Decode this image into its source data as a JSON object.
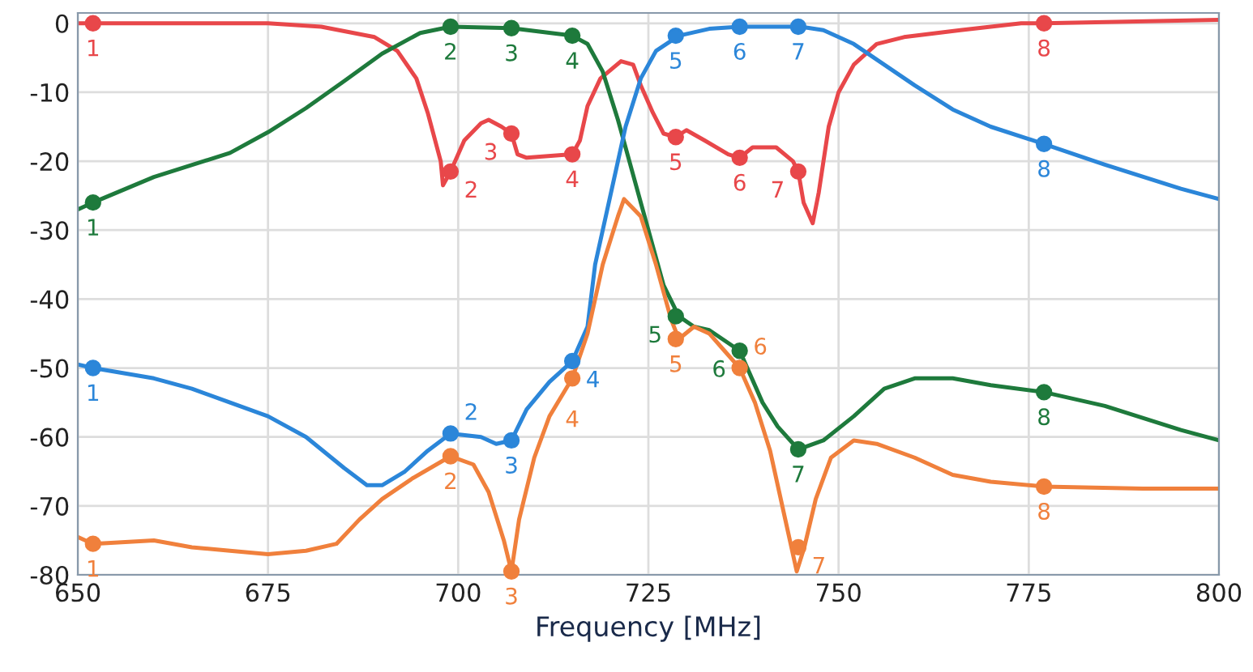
{
  "chart_data": {
    "type": "line",
    "xlabel": "Frequency [MHz]",
    "xlim": [
      650,
      800
    ],
    "xticks": [
      650,
      675,
      700,
      725,
      750,
      775,
      800
    ],
    "ylim": [
      -80,
      1.5
    ],
    "yticks": [
      0,
      -10,
      -20,
      -30,
      -40,
      -50,
      -60,
      -70,
      -80
    ],
    "grid": true,
    "series": [
      {
        "color": "#e8474a",
        "x": [
          650,
          660,
          675,
          682,
          689,
          692,
          694.5,
          696,
          697.7,
          698,
          699,
          700.8,
          703,
          704,
          705.7,
          707,
          707.8,
          709,
          715,
          716,
          717,
          718.7,
          721.4,
          723,
          724,
          725.6,
          727,
          728.6,
          730,
          732.4,
          735.5,
          737,
          738.7,
          741.8,
          744,
          744.7,
          745.4,
          746.6,
          747.4,
          748.7,
          750,
          752,
          755,
          758.6,
          766,
          774,
          777,
          800
        ],
        "values": [
          0,
          0,
          0,
          -0.5,
          -2,
          -4,
          -8,
          -13,
          -20,
          -23.5,
          -21.5,
          -17,
          -14.5,
          -14,
          -15,
          -16,
          -19,
          -19.5,
          -19,
          -17,
          -12,
          -8,
          -5.5,
          -6,
          -9,
          -13,
          -16,
          -16.5,
          -15.5,
          -17,
          -19,
          -19.5,
          -18,
          -18,
          -20,
          -21.5,
          -26,
          -29,
          -24.5,
          -15,
          -10,
          -6,
          -3,
          -2,
          -1,
          0,
          0,
          0.5
        ]
      },
      {
        "color": "#1e7a3c",
        "x": [
          650,
          652,
          660,
          670,
          675,
          680,
          685,
          690,
          695,
          699,
          707,
          715,
          717,
          719,
          721,
          723,
          725,
          727,
          729,
          731,
          733,
          735,
          737,
          740,
          742,
          744.7,
          748,
          752,
          756,
          760,
          765,
          770,
          777,
          785,
          795,
          800
        ],
        "values": [
          -27,
          -26,
          -22.3,
          -18.8,
          -15.8,
          -12.3,
          -8.4,
          -4.4,
          -1.4,
          -0.5,
          -0.7,
          -1.8,
          -3,
          -7,
          -14,
          -22,
          -30,
          -38,
          -42.5,
          -44,
          -44.5,
          -46,
          -47.5,
          -55,
          -58.5,
          -61.8,
          -60.5,
          -57,
          -53,
          -51.5,
          -51.5,
          -52.5,
          -53.5,
          -55.5,
          -59,
          -60.5
        ]
      },
      {
        "color": "#2b86d9",
        "x": [
          650,
          652,
          660,
          665,
          670,
          675,
          680,
          685,
          688,
          690,
          693,
          696,
          699,
          703,
          705,
          707,
          709,
          712,
          715,
          717,
          718,
          720,
          722,
          724,
          726,
          729,
          733,
          737,
          745,
          748,
          752,
          756,
          760,
          765,
          770,
          777,
          785,
          795,
          800
        ],
        "values": [
          -49.5,
          -50,
          -51.5,
          -53,
          -55,
          -57,
          -60,
          -64.5,
          -67,
          -67,
          -65,
          -62,
          -59.5,
          -60,
          -61,
          -60.5,
          -56,
          -52,
          -49,
          -44,
          -35,
          -25,
          -15,
          -8,
          -4,
          -1.8,
          -0.8,
          -0.5,
          -0.5,
          -1,
          -3,
          -6,
          -9,
          -12.5,
          -15,
          -17.5,
          -20.5,
          -24,
          -25.5
        ]
      },
      {
        "color": "#f0803c",
        "x": [
          650,
          652,
          660,
          665,
          670,
          675,
          680,
          684,
          687,
          690,
          694,
          699,
          702,
          704,
          706,
          707,
          708,
          710,
          712,
          715,
          717,
          719,
          721,
          721.8,
          724,
          726,
          728,
          729,
          731,
          733,
          735,
          737,
          739,
          741,
          743,
          744.5,
          745.5,
          747,
          749,
          752,
          755,
          760,
          765,
          770,
          777,
          790,
          800
        ],
        "values": [
          -74.5,
          -75.5,
          -75,
          -76,
          -76.5,
          -77,
          -76.5,
          -75.5,
          -72,
          -69,
          -66,
          -62.8,
          -64,
          -68,
          -75,
          -79.5,
          -72,
          -63,
          -57,
          -51.5,
          -45,
          -35,
          -28,
          -25.5,
          -28,
          -35,
          -43,
          -45.8,
          -44,
          -45,
          -47.5,
          -50,
          -55,
          -62,
          -72,
          -79.5,
          -76,
          -69,
          -63,
          -60.5,
          -61,
          -63,
          -65.5,
          -66.5,
          -67.2,
          -67.5,
          -67.5
        ]
      },
      {
        "type": "scatter",
        "color": "#e8474a",
        "marker": "circle",
        "x": [
          652,
          699,
          707,
          715,
          728.6,
          737,
          744.7,
          777
        ],
        "values": [
          0,
          -21.5,
          -16,
          -19,
          -16.5,
          -19.5,
          -21.5,
          0
        ]
      },
      {
        "type": "scatter",
        "color": "#1e7a3c",
        "marker": "circle",
        "x": [
          652,
          699,
          707,
          715,
          728.6,
          737,
          744.7,
          777
        ],
        "values": [
          -26,
          -0.5,
          -0.7,
          -1.8,
          -42.5,
          -47.5,
          -61.8,
          -53.5
        ]
      },
      {
        "type": "scatter",
        "color": "#2b86d9",
        "marker": "circle",
        "x": [
          652,
          699,
          707,
          715,
          728.6,
          737,
          744.7,
          777
        ],
        "values": [
          -50,
          -59.5,
          -60.5,
          -49,
          -1.8,
          -0.5,
          -0.5,
          -17.5
        ]
      },
      {
        "type": "scatter",
        "color": "#f0803c",
        "marker": "circle",
        "x": [
          652,
          699,
          707,
          715,
          728.6,
          737,
          744.7,
          777
        ],
        "values": [
          -75.5,
          -62.8,
          -79.5,
          -51.5,
          -45.8,
          -50,
          -76,
          -67.2
        ]
      }
    ],
    "annotations": [
      {
        "text": "1",
        "x": 652,
        "y": 0
      },
      {
        "text": "2",
        "x": 699,
        "y": -21.5
      },
      {
        "text": "3",
        "x": 707,
        "y": -16
      },
      {
        "text": "4",
        "x": 715,
        "y": -19
      },
      {
        "text": "5",
        "x": 728.6,
        "y": -16.5
      },
      {
        "text": "6",
        "x": 737,
        "y": -19.5
      },
      {
        "text": "7",
        "x": 744.7,
        "y": -21.5
      },
      {
        "text": "8",
        "x": 777,
        "y": 0
      },
      {
        "text": "1",
        "x": 652,
        "y": -26
      },
      {
        "text": "2",
        "x": 699,
        "y": -0.5
      },
      {
        "text": "3",
        "x": 707,
        "y": -0.7
      },
      {
        "text": "4",
        "x": 715,
        "y": -1.8
      },
      {
        "text": "5",
        "x": 728.6,
        "y": -42.5
      },
      {
        "text": "6",
        "x": 737,
        "y": -47.5
      },
      {
        "text": "7",
        "x": 744.7,
        "y": -61.8
      },
      {
        "text": "8",
        "x": 777,
        "y": -53.5
      },
      {
        "text": "1",
        "x": 652,
        "y": -50
      },
      {
        "text": "2",
        "x": 699,
        "y": -59.5
      },
      {
        "text": "3",
        "x": 707,
        "y": -60.5
      },
      {
        "text": "4",
        "x": 715,
        "y": -49
      },
      {
        "text": "5",
        "x": 728.6,
        "y": -1.8
      },
      {
        "text": "6",
        "x": 737,
        "y": -0.5
      },
      {
        "text": "7",
        "x": 744.7,
        "y": -0.5
      },
      {
        "text": "8",
        "x": 777,
        "y": -17.5
      },
      {
        "text": "1",
        "x": 652,
        "y": -75.5
      },
      {
        "text": "2",
        "x": 699,
        "y": -62.8
      },
      {
        "text": "3",
        "x": 707,
        "y": -79.5
      },
      {
        "text": "4",
        "x": 715,
        "y": -51.5
      },
      {
        "text": "5",
        "x": 728.6,
        "y": -45.8
      },
      {
        "text": "6",
        "x": 737,
        "y": -50
      },
      {
        "text": "7",
        "x": 744.7,
        "y": -76
      },
      {
        "text": "8",
        "x": 777,
        "y": -67.2
      }
    ]
  }
}
